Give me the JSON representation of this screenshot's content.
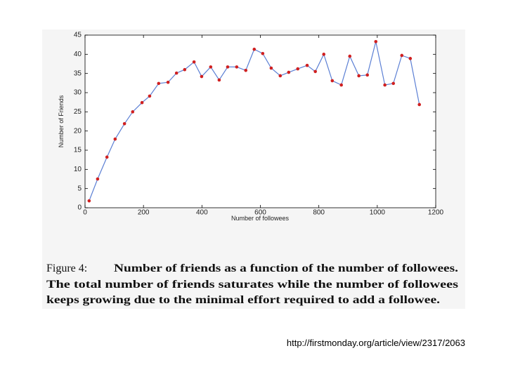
{
  "chart_data": {
    "type": "line",
    "x_label": "Number of followees",
    "y_label": "Number of Friends",
    "x": [
      14,
      43,
      75,
      103,
      135,
      163,
      195,
      221,
      252,
      284,
      313,
      341,
      373,
      399,
      430,
      459,
      488,
      519,
      550,
      579,
      608,
      637,
      668,
      697,
      728,
      760,
      788,
      817,
      846,
      877,
      906,
      937,
      966,
      995,
      1026,
      1055,
      1084,
      1113,
      1144
    ],
    "series": [
      {
        "name": "Number of friends",
        "color": "#5b7fd4",
        "marker_color": "#d02020",
        "values": [
          1.8,
          7.5,
          13.2,
          17.9,
          21.9,
          25,
          27.4,
          29.1,
          32.4,
          32.7,
          35.1,
          36,
          38,
          34.2,
          36.7,
          33.3,
          36.7,
          36.7,
          35.8,
          41.3,
          40.2,
          36.4,
          34.4,
          35.3,
          36.2,
          37.1,
          35.5,
          40,
          33.1,
          32,
          39.5,
          34.4,
          34.6,
          43.3,
          32,
          32.4,
          39.7,
          38.9,
          26.9
        ]
      }
    ],
    "xlim": [
      0,
      1200
    ],
    "xticks": [
      0,
      200,
      400,
      600,
      800,
      1000,
      1200
    ],
    "ylim": [
      0,
      45
    ],
    "yticks": [
      0,
      5,
      10,
      15,
      20,
      25,
      30,
      35,
      40,
      45
    ],
    "grid": false
  },
  "caption": {
    "label": "Figure 4:",
    "lines": [
      "Number of friends as a function of the number of followees.",
      "The total number of friends saturates while the number of followees",
      "keeps growing due to the minimal effort required to add a followee."
    ]
  },
  "source_url": "http://firstmonday.org/article/view/2317/2063"
}
